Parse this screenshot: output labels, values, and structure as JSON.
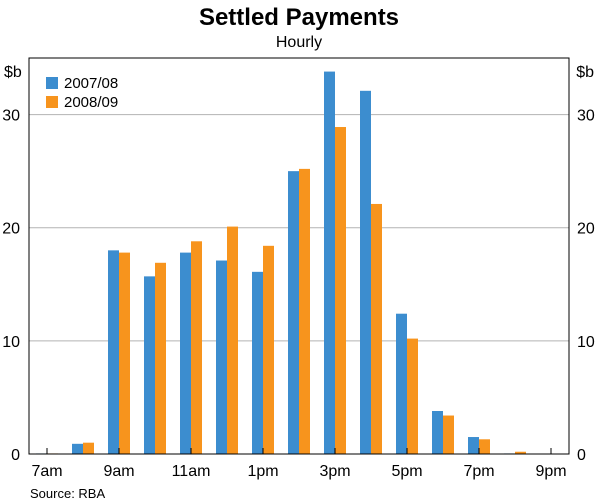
{
  "chart_data": {
    "type": "bar",
    "title": "Settled Payments",
    "subtitle": "Hourly",
    "ylabel_left": "$b",
    "ylabel_right": "$b",
    "ylim": [
      0,
      35
    ],
    "yticks": [
      0,
      10,
      20,
      30
    ],
    "grid": true,
    "legend_position": "top-left",
    "categories": [
      "7am",
      "8am",
      "9am",
      "10am",
      "11am",
      "12pm",
      "1pm",
      "2pm",
      "3pm",
      "4pm",
      "5pm",
      "6pm",
      "7pm",
      "8pm",
      "9pm"
    ],
    "x_tick_labels": [
      "7am",
      "9am",
      "11am",
      "1pm",
      "3pm",
      "5pm",
      "7pm",
      "9pm"
    ],
    "series": [
      {
        "name": "2007/08",
        "color": "#3c8dcf",
        "values": [
          0.05,
          0.9,
          18.0,
          15.7,
          17.8,
          17.1,
          16.1,
          25.0,
          33.8,
          32.1,
          12.4,
          3.8,
          1.5,
          0.05,
          0
        ]
      },
      {
        "name": "2008/09",
        "color": "#f7941d",
        "values": [
          0.05,
          1.0,
          17.8,
          16.9,
          18.8,
          20.1,
          18.4,
          25.2,
          28.9,
          22.1,
          10.2,
          3.4,
          1.3,
          0.2,
          0
        ]
      }
    ],
    "source": "Source: RBA"
  }
}
